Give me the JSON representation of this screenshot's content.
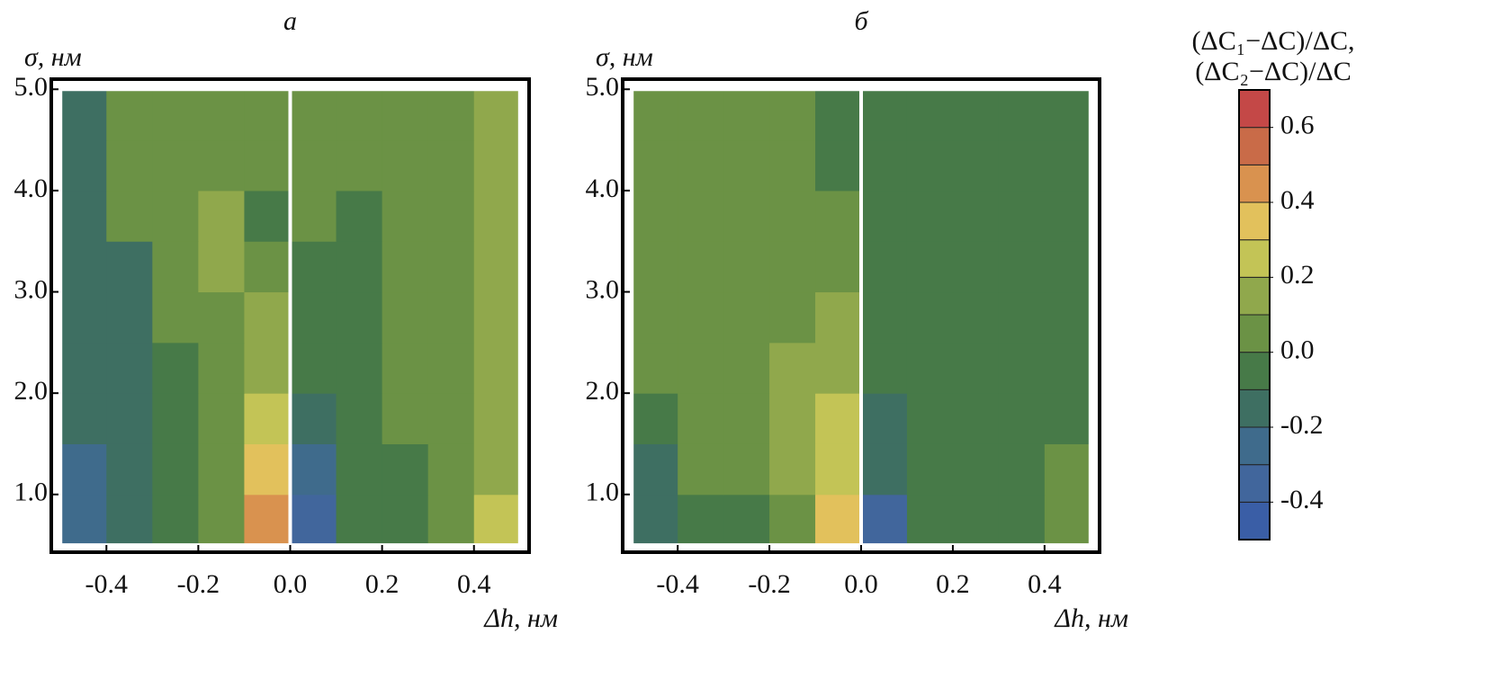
{
  "chart_data": [
    {
      "type": "contour",
      "title": "а",
      "ylabel": "σ, нм",
      "xlabel": "Δh, нм",
      "xlim": [
        -0.52,
        0.52
      ],
      "ylim": [
        0.43,
        5.1
      ],
      "xticks": [
        -0.4,
        -0.2,
        {
          "value": 0,
          "label": "0.0"
        },
        0.2,
        0.4
      ],
      "yticks": [
        {
          "value": 1,
          "label": "1.0"
        },
        {
          "value": 2,
          "label": "2.0"
        },
        {
          "value": 3,
          "label": "3.0"
        },
        {
          "value": 4,
          "label": "4.0"
        },
        {
          "value": 5,
          "label": "5.0"
        }
      ],
      "x": [
        -0.45,
        -0.35,
        -0.25,
        -0.15,
        -0.05,
        0.05,
        0.15,
        0.25,
        0.35,
        0.45
      ],
      "y": [
        0.75,
        1.25,
        1.75,
        2.25,
        2.75,
        3.25,
        3.75,
        4.25,
        4.75
      ],
      "z": [
        [
          -0.3,
          -0.15,
          -0.05,
          0.05,
          0.4,
          -0.35,
          -0.05,
          -0.05,
          0.05,
          0.25
        ],
        [
          -0.25,
          -0.15,
          -0.05,
          0.05,
          0.3,
          -0.25,
          -0.05,
          -0.05,
          0.05,
          0.15
        ],
        [
          -0.15,
          -0.15,
          -0.05,
          0.05,
          0.2,
          -0.15,
          -0.05,
          0.05,
          0.05,
          0.15
        ],
        [
          -0.15,
          -0.15,
          -0.05,
          0.05,
          0.15,
          -0.1,
          -0.05,
          0.05,
          0.05,
          0.15
        ],
        [
          -0.15,
          -0.15,
          0.05,
          0.05,
          0.1,
          -0.05,
          -0.05,
          0.05,
          0.05,
          0.15
        ],
        [
          -0.15,
          -0.15,
          0.05,
          0.15,
          0.05,
          -0.05,
          -0.05,
          0.05,
          0.05,
          0.15
        ],
        [
          -0.15,
          0.05,
          0.05,
          0.15,
          -0.05,
          0.05,
          -0.05,
          0.05,
          0.05,
          0.15
        ],
        [
          -0.15,
          0.05,
          0.05,
          0.05,
          0.05,
          0.05,
          0.05,
          0.05,
          0.05,
          0.15
        ],
        [
          -0.15,
          0.05,
          0.05,
          0.05,
          0.05,
          0.05,
          0.05,
          0.05,
          0.05,
          0.15
        ]
      ]
    },
    {
      "type": "contour",
      "title": "б",
      "ylabel": "σ, нм",
      "xlabel": "Δh, нм",
      "xlim": [
        -0.52,
        0.52
      ],
      "ylim": [
        0.43,
        5.1
      ],
      "xticks": [
        -0.4,
        -0.2,
        {
          "value": 0,
          "label": "0.0"
        },
        0.2,
        0.4
      ],
      "yticks": [
        {
          "value": 1,
          "label": "1.0"
        },
        {
          "value": 2,
          "label": "2.0"
        },
        {
          "value": 3,
          "label": "3.0"
        },
        {
          "value": 4,
          "label": "4.0"
        },
        {
          "value": 5,
          "label": "5.0"
        }
      ],
      "x": [
        -0.45,
        -0.35,
        -0.25,
        -0.15,
        -0.05,
        0.05,
        0.15,
        0.25,
        0.35,
        0.45
      ],
      "y": [
        0.75,
        1.25,
        1.75,
        2.25,
        2.75,
        3.25,
        3.75,
        4.25,
        4.75
      ],
      "z": [
        [
          -0.15,
          -0.05,
          -0.05,
          0.05,
          0.35,
          -0.35,
          -0.05,
          -0.05,
          -0.05,
          0.05
        ],
        [
          -0.15,
          0.05,
          0.05,
          0.15,
          0.25,
          -0.15,
          -0.05,
          -0.05,
          -0.05,
          0.05
        ],
        [
          -0.05,
          0.05,
          0.05,
          0.15,
          0.25,
          -0.15,
          -0.05,
          -0.05,
          -0.05,
          -0.05
        ],
        [
          0.05,
          0.05,
          0.05,
          0.15,
          0.15,
          -0.05,
          -0.05,
          -0.05,
          -0.05,
          -0.05
        ],
        [
          0.05,
          0.05,
          0.05,
          0.05,
          0.15,
          -0.05,
          -0.05,
          -0.05,
          -0.05,
          -0.05
        ],
        [
          0.05,
          0.05,
          0.05,
          0.05,
          0.05,
          -0.05,
          -0.05,
          -0.05,
          -0.05,
          -0.05
        ],
        [
          0.05,
          0.05,
          0.05,
          0.05,
          0.05,
          -0.05,
          -0.05,
          -0.05,
          -0.05,
          -0.05
        ],
        [
          0.05,
          0.05,
          0.05,
          0.05,
          -0.05,
          -0.05,
          -0.05,
          -0.05,
          -0.05,
          -0.05
        ],
        [
          0.05,
          0.05,
          0.05,
          0.05,
          -0.05,
          -0.05,
          -0.05,
          -0.05,
          -0.05,
          -0.05
        ]
      ]
    }
  ],
  "colorbar": {
    "label": [
      "(ΔC₁−ΔC)/ΔC,",
      "(ΔC₂−ΔC)/ΔC"
    ],
    "levels": [
      -0.5,
      -0.4,
      -0.3,
      -0.2,
      -0.1,
      0,
      0.1,
      0.2,
      0.3,
      0.4,
      0.5,
      0.6,
      0.7
    ],
    "colors": [
      "#3a5ea6",
      "#41669c",
      "#3f6b8c",
      "#3e6f62",
      "#477a48",
      "#6b9245",
      "#90a84c",
      "#c3c456",
      "#e2c15c",
      "#d9924f",
      "#c96b48",
      "#c44847"
    ],
    "ticks": [
      -0.4,
      -0.2,
      {
        "value": 0,
        "label": "0.0"
      },
      0.2,
      0.4,
      0.6
    ]
  }
}
